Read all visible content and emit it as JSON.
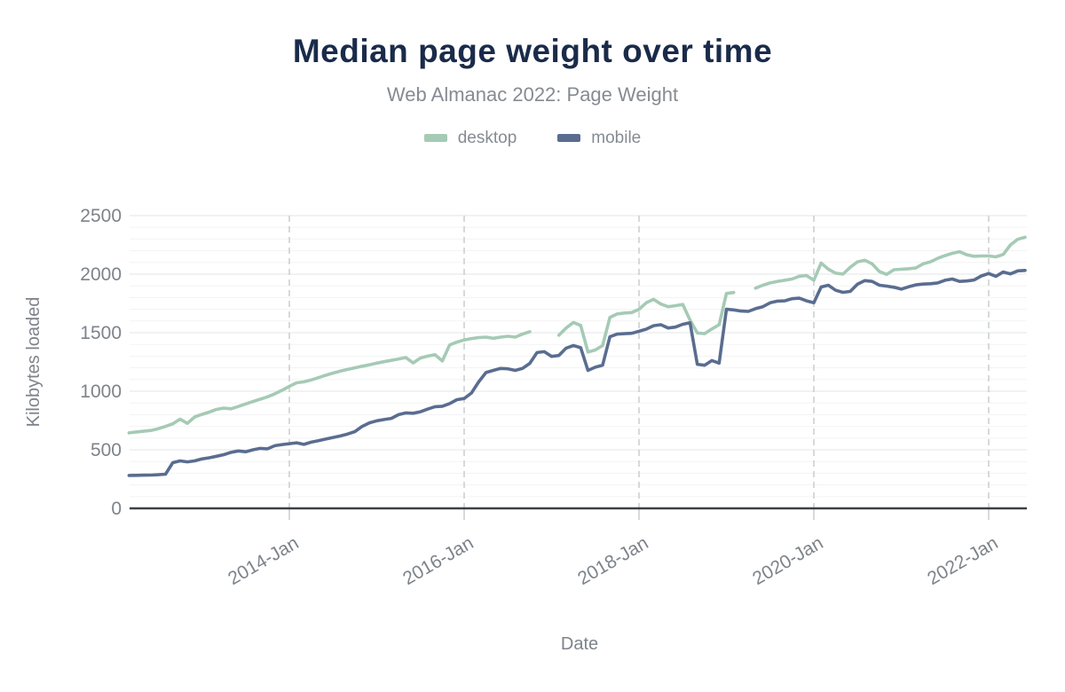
{
  "title": "Median page weight over time",
  "subtitle": "Web Almanac 2022: Page Weight",
  "colors": {
    "title": "#1a2b4a",
    "subtitle": "#858b92",
    "tick_text": "#7d838a",
    "axis_line": "#3b4045",
    "grid_major": "#e3e5e7",
    "grid_minor": "#f3f3f4",
    "grid_dashed": "#c9cdce",
    "desktop": "#a5cab5",
    "mobile": "#5a6d90"
  },
  "chart_data": {
    "type": "line",
    "title": "Median page weight over time",
    "subtitle": "Web Almanac 2022: Page Weight",
    "xlabel": "Date",
    "ylabel": "Kilobytes loaded",
    "units": "KB",
    "ylim": [
      0,
      2500
    ],
    "y_ticks": [
      0,
      500,
      1000,
      1500,
      2000,
      2500
    ],
    "y_minor_step": 100,
    "x_domain_years": [
      2012.17,
      2022.47
    ],
    "x_ticks": [
      {
        "label": "2014-Jan",
        "year": 2014
      },
      {
        "label": "2016-Jan",
        "year": 2016
      },
      {
        "label": "2018-Jan",
        "year": 2018
      },
      {
        "label": "2020-Jan",
        "year": 2020
      },
      {
        "label": "2022-Jan",
        "year": 2022
      }
    ],
    "legend_position": "top",
    "grid": {
      "horizontal_major": true,
      "horizontal_minor": true,
      "vertical_dashed_at_ticks": true
    },
    "x": [
      "2012-03",
      "2012-04",
      "2012-05",
      "2012-06",
      "2012-07",
      "2012-08",
      "2012-09",
      "2012-10",
      "2012-11",
      "2012-12",
      "2013-01",
      "2013-02",
      "2013-03",
      "2013-04",
      "2013-05",
      "2013-06",
      "2013-07",
      "2013-08",
      "2013-09",
      "2013-10",
      "2013-11",
      "2013-12",
      "2014-01",
      "2014-02",
      "2014-03",
      "2014-04",
      "2014-05",
      "2014-06",
      "2014-07",
      "2014-08",
      "2014-09",
      "2014-10",
      "2014-11",
      "2014-12",
      "2015-01",
      "2015-02",
      "2015-03",
      "2015-04",
      "2015-05",
      "2015-06",
      "2015-07",
      "2015-08",
      "2015-09",
      "2015-10",
      "2015-11",
      "2015-12",
      "2016-01",
      "2016-02",
      "2016-03",
      "2016-04",
      "2016-05",
      "2016-06",
      "2016-07",
      "2016-08",
      "2016-09",
      "2016-10",
      "2016-11",
      "2016-12",
      "2017-01",
      "2017-02",
      "2017-03",
      "2017-04",
      "2017-05",
      "2017-06",
      "2017-07",
      "2017-08",
      "2017-09",
      "2017-10",
      "2017-11",
      "2017-12",
      "2018-01",
      "2018-02",
      "2018-03",
      "2018-04",
      "2018-05",
      "2018-06",
      "2018-07",
      "2018-08",
      "2018-09",
      "2018-10",
      "2018-11",
      "2018-12",
      "2019-01",
      "2019-02",
      "2019-03",
      "2019-04",
      "2019-05",
      "2019-06",
      "2019-07",
      "2019-08",
      "2019-09",
      "2019-10",
      "2019-11",
      "2019-12",
      "2020-01",
      "2020-02",
      "2020-03",
      "2020-04",
      "2020-05",
      "2020-06",
      "2020-07",
      "2020-08",
      "2020-09",
      "2020-10",
      "2020-11",
      "2020-12",
      "2021-01",
      "2021-02",
      "2021-03",
      "2021-04",
      "2021-05",
      "2021-06",
      "2021-07",
      "2021-08",
      "2021-09",
      "2021-10",
      "2021-11",
      "2021-12",
      "2022-01",
      "2022-02",
      "2022-03",
      "2022-04",
      "2022-05",
      "2022-06"
    ],
    "series": [
      {
        "name": "desktop",
        "color": "#a5cab5",
        "values": [
          645,
          652,
          658,
          665,
          680,
          700,
          722,
          762,
          726,
          780,
          802,
          822,
          845,
          856,
          850,
          870,
          892,
          912,
          932,
          952,
          978,
          1008,
          1042,
          1072,
          1080,
          1096,
          1116,
          1136,
          1155,
          1172,
          1186,
          1200,
          1214,
          1226,
          1240,
          1252,
          1264,
          1276,
          1288,
          1242,
          1284,
          1300,
          1312,
          1258,
          1395,
          1420,
          1438,
          1450,
          1458,
          1462,
          1452,
          1462,
          1470,
          1462,
          1488,
          1508,
          null,
          null,
          null,
          1478,
          1540,
          1588,
          1562,
          1335,
          1352,
          1390,
          1630,
          1660,
          1668,
          1672,
          1700,
          1755,
          1785,
          1745,
          1722,
          1730,
          1742,
          1608,
          1498,
          1492,
          1532,
          1568,
          1835,
          1843,
          null,
          null,
          1880,
          1905,
          1925,
          1938,
          1948,
          1958,
          1982,
          1988,
          1948,
          2095,
          2042,
          2008,
          2000,
          2058,
          2105,
          2118,
          2088,
          2022,
          1998,
          2038,
          2042,
          2046,
          2052,
          2088,
          2105,
          2135,
          2158,
          2178,
          2192,
          2165,
          2152,
          2155,
          2155,
          2148,
          2168,
          2250,
          2298,
          2315
        ]
      },
      {
        "name": "mobile",
        "color": "#5a6d90",
        "values": [
          281,
          282,
          283,
          284,
          287,
          292,
          390,
          405,
          397,
          405,
          422,
          432,
          445,
          458,
          478,
          490,
          483,
          500,
          512,
          508,
          535,
          545,
          552,
          560,
          546,
          565,
          578,
          592,
          605,
          618,
          635,
          655,
          700,
          730,
          748,
          758,
          768,
          800,
          815,
          812,
          825,
          848,
          868,
          872,
          895,
          928,
          938,
          985,
          1080,
          1160,
          1178,
          1195,
          1192,
          1178,
          1195,
          1238,
          1330,
          1338,
          1298,
          1305,
          1368,
          1390,
          1372,
          1178,
          1205,
          1223,
          1465,
          1488,
          1492,
          1495,
          1512,
          1530,
          1560,
          1568,
          1540,
          1548,
          1572,
          1585,
          1230,
          1222,
          1262,
          1240,
          1700,
          1695,
          1685,
          1682,
          1705,
          1722,
          1755,
          1770,
          1772,
          1790,
          1795,
          1772,
          1755,
          1890,
          1905,
          1862,
          1845,
          1852,
          1915,
          1945,
          1938,
          1905,
          1898,
          1888,
          1872,
          1892,
          1908,
          1915,
          1918,
          1925,
          1948,
          1958,
          1938,
          1942,
          1950,
          1985,
          2005,
          1982,
          2018,
          2002,
          2028,
          2032
        ]
      }
    ]
  }
}
